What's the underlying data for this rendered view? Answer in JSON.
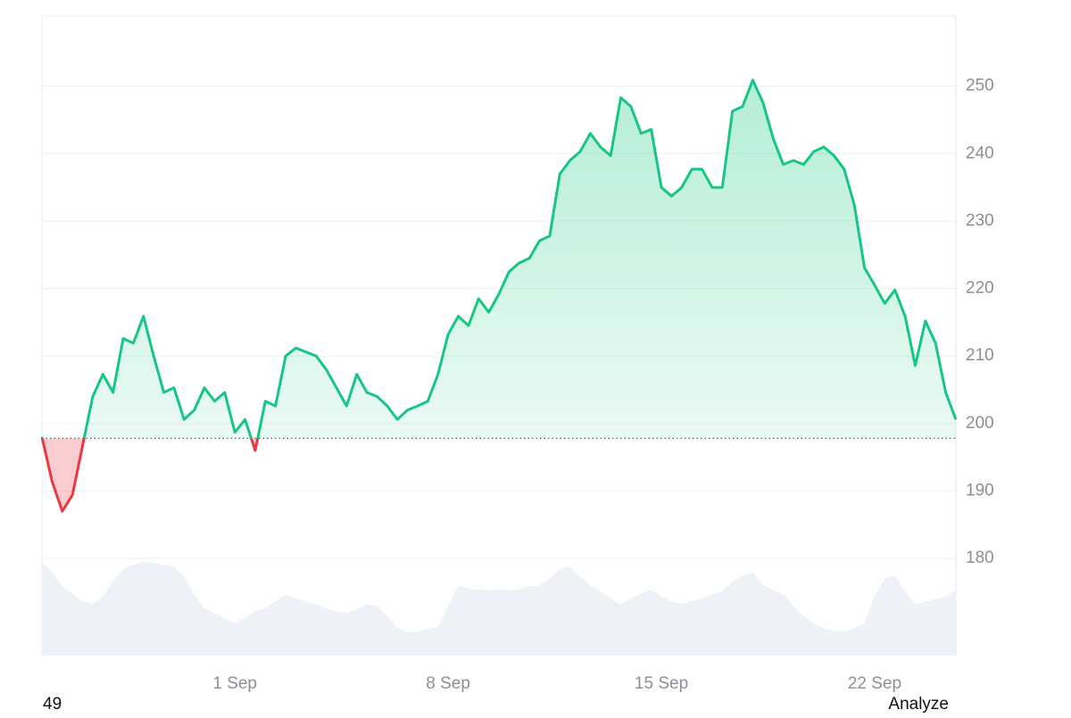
{
  "chart_data": {
    "type": "line",
    "categories": [
      null,
      null,
      null,
      null,
      null,
      null,
      null,
      null,
      null,
      null,
      null,
      null,
      null,
      null,
      null,
      null,
      null,
      null,
      null,
      "1 Sep",
      null,
      null,
      null,
      null,
      null,
      null,
      null,
      null,
      null,
      null,
      null,
      null,
      null,
      null,
      null,
      null,
      null,
      null,
      null,
      null,
      "8 Sep",
      null,
      null,
      null,
      null,
      null,
      null,
      null,
      null,
      null,
      null,
      null,
      null,
      null,
      null,
      null,
      null,
      null,
      null,
      null,
      null,
      "15 Sep",
      null,
      null,
      null,
      null,
      null,
      null,
      null,
      null,
      null,
      null,
      null,
      null,
      null,
      null,
      null,
      null,
      null,
      null,
      null,
      null,
      "22 Sep",
      null,
      null,
      null,
      null,
      null,
      null,
      null,
      null
    ],
    "values": [
      198,
      191.4,
      187,
      189.4,
      196.7,
      204,
      207.3,
      204.6,
      212.6,
      211.9,
      215.9,
      210,
      204.6,
      205.3,
      200.6,
      202,
      205.3,
      203.3,
      204.6,
      198.7,
      200.6,
      196,
      203.3,
      202.6,
      210,
      211.2,
      210.6,
      210,
      208,
      205.3,
      202.6,
      207.3,
      204.6,
      204,
      202.6,
      200.6,
      202,
      202.6,
      203.3,
      207.3,
      213.2,
      215.9,
      214.5,
      218.5,
      216.5,
      219.2,
      222.5,
      223.8,
      224.5,
      227.1,
      227.8,
      237,
      239,
      240.3,
      243,
      241,
      239.7,
      248.3,
      247,
      243,
      243.6,
      235,
      233.7,
      235,
      237.7,
      237.7,
      235,
      235,
      246.3,
      247,
      250.9,
      247.6,
      242.3,
      238.4,
      239,
      238.4,
      240.3,
      241,
      239.7,
      237.7,
      232.4,
      223.1,
      220.5,
      217.8,
      219.8,
      215.9,
      208.6,
      215.2,
      211.9,
      204.6,
      200.6
    ],
    "volume": [
      95,
      85,
      70,
      62,
      55,
      52,
      60,
      75,
      88,
      92,
      95,
      94,
      92,
      90,
      80,
      62,
      48,
      43,
      38,
      33,
      38,
      45,
      48,
      55,
      62,
      58,
      55,
      52,
      48,
      45,
      43,
      47,
      52,
      50,
      40,
      28,
      24,
      24,
      27,
      29,
      50,
      71,
      68,
      67,
      66,
      67,
      66,
      67,
      70,
      71,
      78,
      88,
      90,
      80,
      71,
      65,
      58,
      52,
      58,
      63,
      67,
      60,
      55,
      52,
      55,
      58,
      62,
      65,
      75,
      81,
      85,
      72,
      66,
      62,
      50,
      40,
      33,
      28,
      25,
      24,
      28,
      33,
      60,
      78,
      81,
      65,
      52,
      55,
      57,
      60,
      67
    ],
    "baseline": 197.8,
    "ylim": [
      165.6,
      260.4
    ],
    "yticks": [
      180,
      190,
      200,
      210,
      220,
      230,
      240,
      250
    ],
    "grid": true,
    "up_color": "#16c784",
    "down_color": "#ea3943",
    "volume_color": "#eef1f5"
  },
  "footer": {
    "left": "49",
    "right": "Analyze"
  }
}
